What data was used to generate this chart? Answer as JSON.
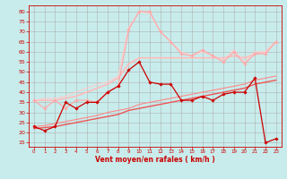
{
  "bg_color": "#c8ecec",
  "grid_color": "#b0b0b0",
  "xlabel": "Vent moyen/en rafales ( km/h )",
  "xlabel_color": "#cc0000",
  "tick_color": "#cc0000",
  "x_ticks": [
    0,
    1,
    2,
    3,
    4,
    5,
    6,
    7,
    8,
    9,
    10,
    11,
    12,
    13,
    14,
    15,
    16,
    17,
    18,
    19,
    20,
    21,
    22,
    23
  ],
  "y_ticks": [
    15,
    20,
    25,
    30,
    35,
    40,
    45,
    50,
    55,
    60,
    65,
    70,
    75,
    80
  ],
  "ylim": [
    13,
    83
  ],
  "xlim": [
    -0.5,
    23.5
  ],
  "line1_dark_red": {
    "x": [
      0,
      1,
      2,
      3,
      4,
      5,
      6,
      7,
      8,
      9,
      10,
      11,
      12,
      13,
      14,
      15,
      16,
      17,
      18,
      19,
      20,
      21,
      22,
      23
    ],
    "y": [
      23,
      21,
      23,
      35,
      32,
      35,
      35,
      40,
      43,
      51,
      55,
      45,
      44,
      44,
      36,
      36,
      38,
      36,
      39,
      40,
      40,
      47,
      15,
      17
    ],
    "color": "#cc0000",
    "lw": 0.9,
    "marker": "D",
    "ms": 1.8
  },
  "line2_reg1": {
    "x": [
      0,
      1,
      2,
      3,
      4,
      5,
      6,
      7,
      8,
      9,
      10,
      11,
      12,
      13,
      14,
      15,
      16,
      17,
      18,
      19,
      20,
      21,
      22,
      23
    ],
    "y": [
      22,
      22.5,
      23,
      24,
      25,
      26,
      27,
      28,
      29,
      31,
      32,
      33,
      34,
      35,
      36,
      37,
      38,
      39,
      40,
      41,
      42,
      44,
      45,
      46
    ],
    "color": "#ee5555",
    "lw": 1.0,
    "marker": null
  },
  "line3_reg2": {
    "x": [
      0,
      1,
      2,
      3,
      4,
      5,
      6,
      7,
      8,
      9,
      10,
      11,
      12,
      13,
      14,
      15,
      16,
      17,
      18,
      19,
      20,
      21,
      22,
      23
    ],
    "y": [
      23,
      23.5,
      24.5,
      25.5,
      26.5,
      27.5,
      28.5,
      30,
      31,
      32,
      34,
      35,
      36,
      37,
      38,
      39,
      40,
      41,
      42,
      43,
      44,
      46,
      47,
      48
    ],
    "color": "#ff8888",
    "lw": 0.8,
    "marker": null
  },
  "line4_light1": {
    "x": [
      0,
      1,
      2,
      3,
      4,
      5,
      6,
      7,
      8,
      9,
      10,
      11,
      12,
      13,
      14,
      15,
      16,
      17,
      18,
      19,
      20,
      21,
      22,
      23
    ],
    "y": [
      36,
      32,
      36,
      32,
      36,
      36,
      35,
      40,
      43,
      71,
      80,
      80,
      70,
      65,
      59,
      58,
      61,
      58,
      55,
      60,
      54,
      59,
      59,
      65
    ],
    "color": "#ffaaaa",
    "lw": 0.9,
    "marker": "D",
    "ms": 1.8
  },
  "line5_light2": {
    "x": [
      0,
      1,
      2,
      3,
      4,
      5,
      6,
      7,
      8,
      9,
      10,
      11,
      12,
      13,
      14,
      15,
      16,
      17,
      18,
      19,
      20,
      21,
      22,
      23
    ],
    "y": [
      36,
      36,
      36,
      37,
      38,
      40,
      42,
      44,
      47,
      54,
      57,
      57,
      57,
      57,
      57,
      57,
      57,
      57,
      57,
      58,
      57,
      59,
      60,
      65
    ],
    "color": "#ffbbbb",
    "lw": 1.2,
    "marker": null
  },
  "line6_light3": {
    "x": [
      0,
      1,
      2,
      3,
      4,
      5,
      6,
      7,
      8,
      9,
      10,
      11,
      12,
      13,
      14,
      15,
      16,
      17,
      18,
      19,
      20,
      21,
      22,
      23
    ],
    "y": [
      36,
      37,
      37,
      38,
      40,
      42,
      44,
      45,
      48,
      72,
      80,
      79,
      70,
      65,
      60,
      58,
      60,
      58,
      56,
      61,
      55,
      60,
      60,
      65
    ],
    "color": "#ffcccc",
    "lw": 0.8,
    "marker": null
  }
}
